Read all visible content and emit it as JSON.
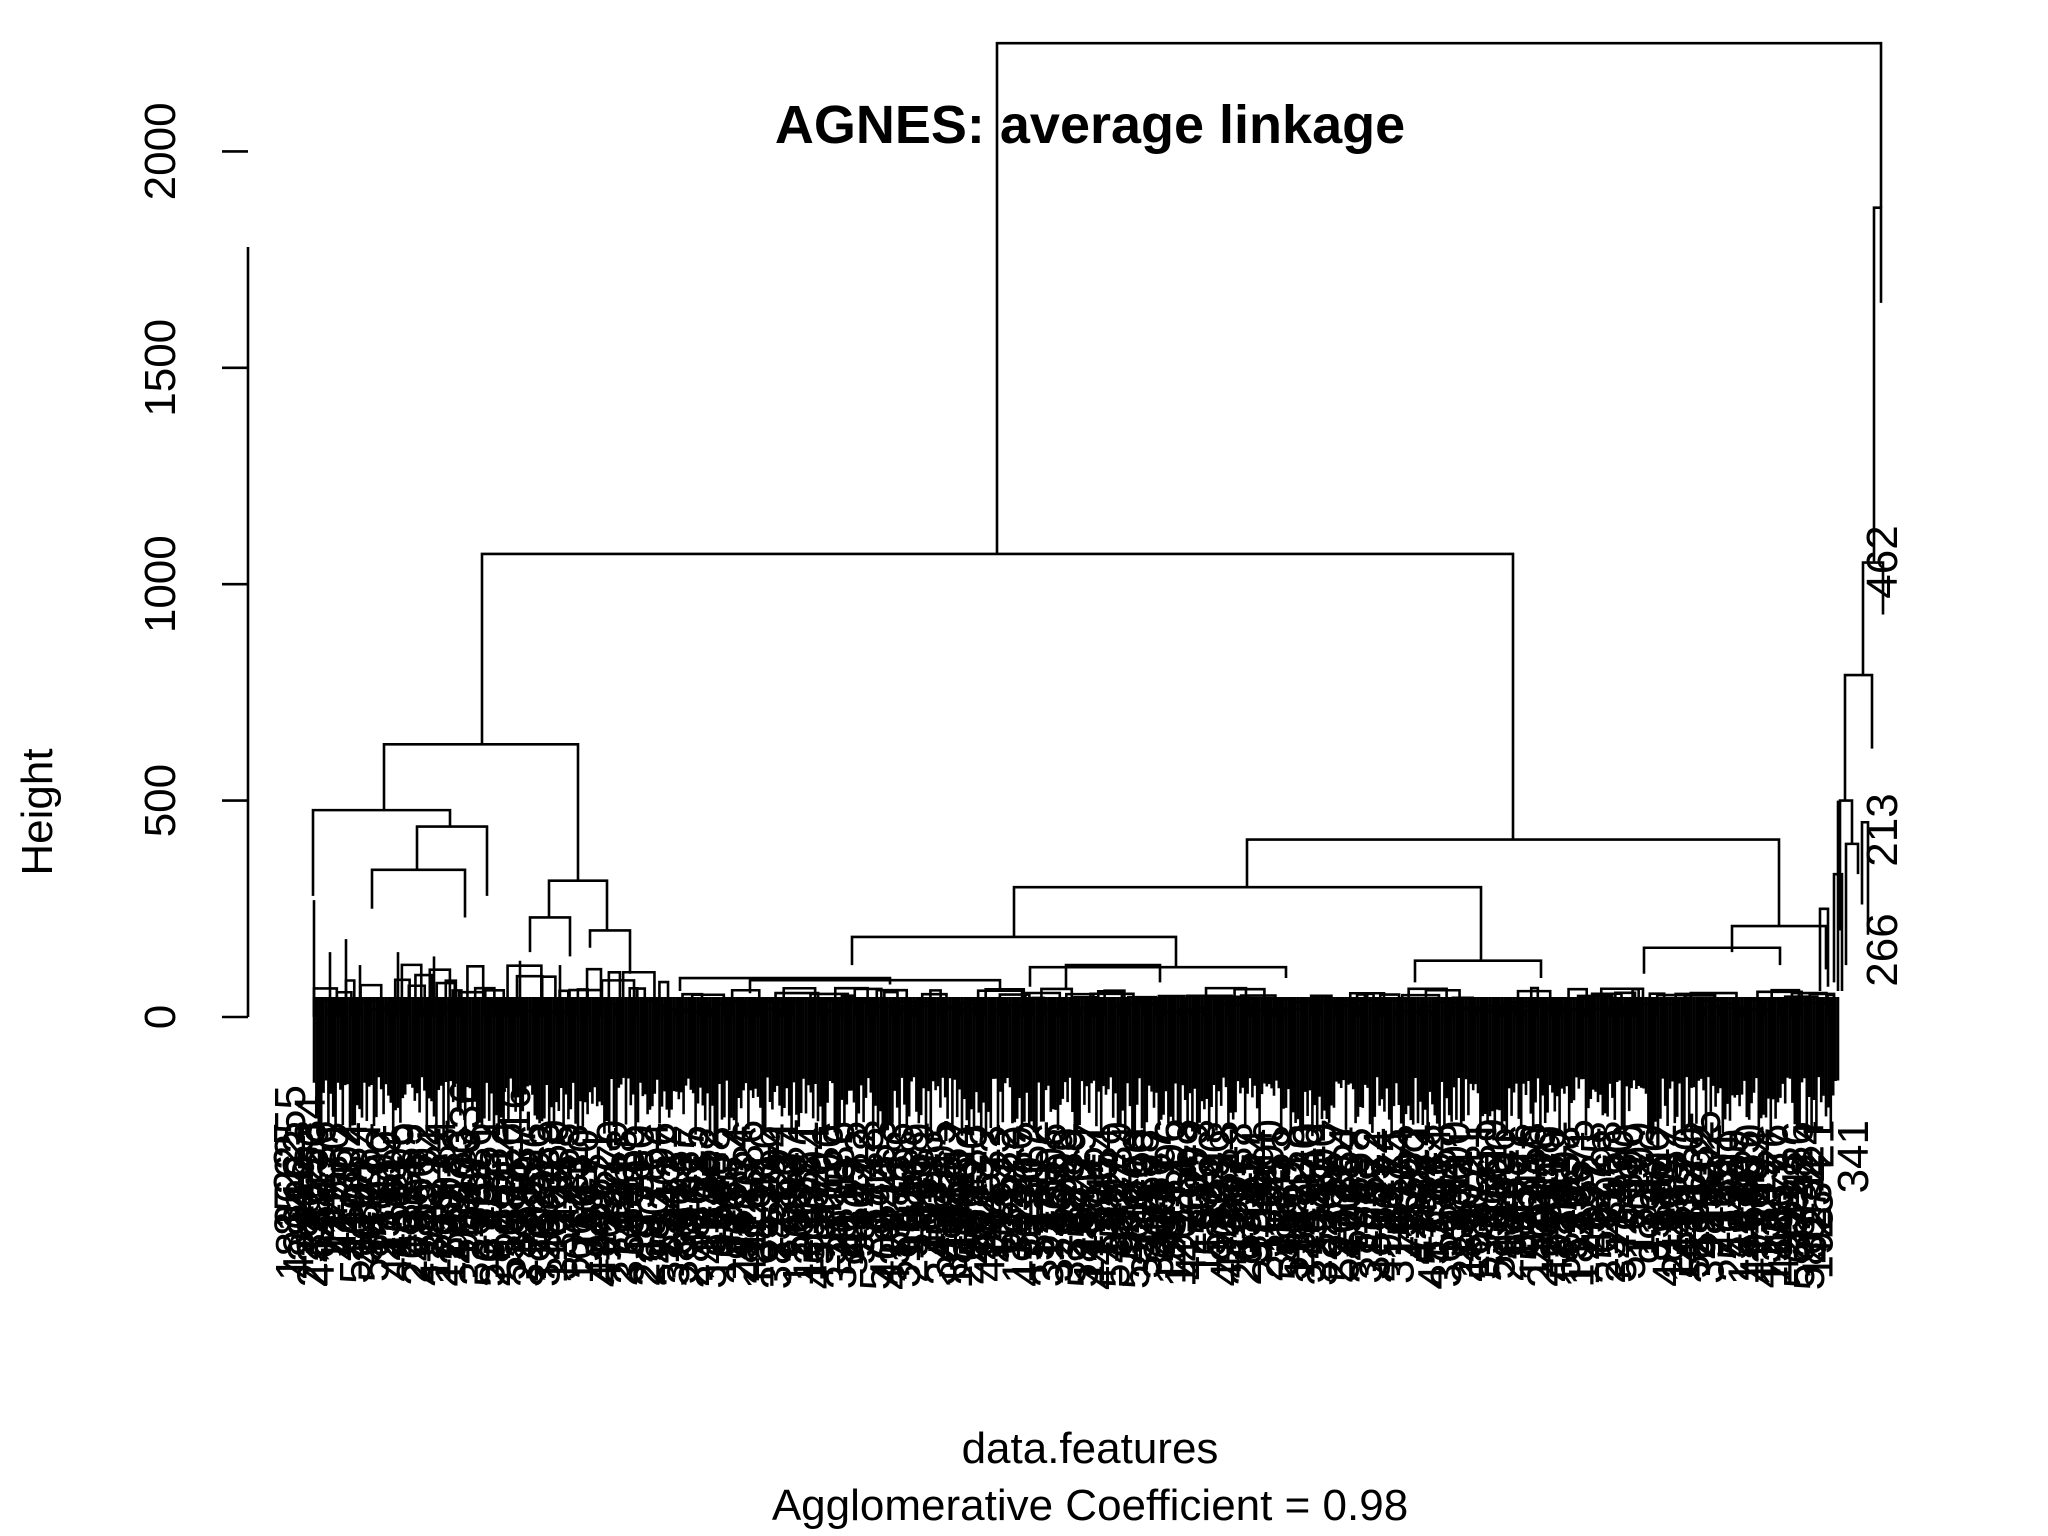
{
  "chart_data": {
    "type": "dendrogram",
    "title": "AGNES: average linkage",
    "xlabel": "data.features",
    "subtitle": "Agglomerative Coefficient =  0.98",
    "ylabel": "Height",
    "ylim": [
      0,
      2250
    ],
    "yticks": [
      0,
      500,
      1000,
      1500,
      2000
    ],
    "ytick_labels": [
      "0",
      "500",
      "1000",
      "1500",
      "2000"
    ],
    "merge_heights": {
      "root": 2250,
      "left_main": 1070,
      "left_cluster": 630,
      "right_main": 410,
      "right_sub": 300,
      "mid_sub": 185,
      "outlier_chain": [
        1870,
        1050,
        790,
        500,
        400,
        330
      ]
    },
    "outlier_labels": [
      "462",
      "213",
      "266"
    ],
    "leaf_count_approx": 600,
    "colors": {
      "line": "#000000",
      "background": "#ffffff"
    }
  }
}
